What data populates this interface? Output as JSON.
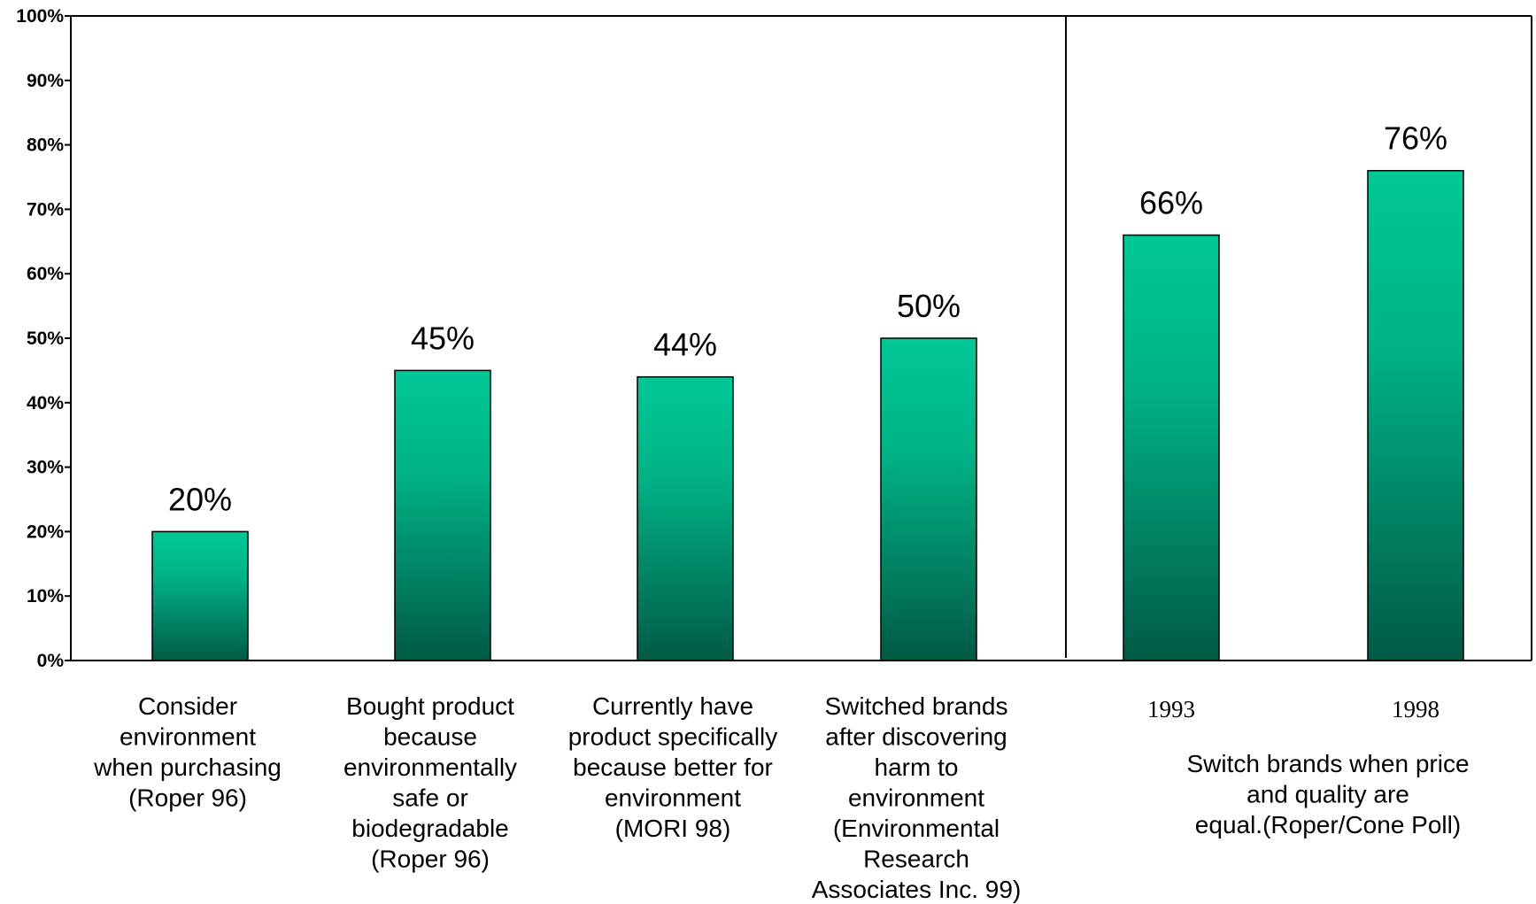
{
  "chart_data": {
    "type": "bar",
    "title": "",
    "xlabel": "",
    "ylabel": "",
    "ylim": [
      0,
      100
    ],
    "y_ticks": [
      "0%",
      "10%",
      "20%",
      "30%",
      "40%",
      "50%",
      "60%",
      "70%",
      "80%",
      "90%",
      "100%"
    ],
    "grid": false,
    "legend": "none",
    "colors": {
      "bar_top": "#00C896",
      "bar_bottom": "#005A46",
      "axis": "#000000"
    },
    "bars": [
      {
        "value": 20,
        "label": "20%",
        "category": [
          "Consider",
          "environment",
          "when purchasing",
          "(Roper 96)"
        ]
      },
      {
        "value": 45,
        "label": "45%",
        "category": [
          "Bought product",
          "because",
          "environmentally",
          "safe or",
          "biodegradable",
          "(Roper 96)"
        ]
      },
      {
        "value": 44,
        "label": "44%",
        "category": [
          "Currently have",
          "product specifically",
          "because better for",
          "environment",
          "(MORI 98)"
        ]
      },
      {
        "value": 50,
        "label": "50%",
        "category": [
          "Switched brands",
          "after discovering",
          "harm to",
          "environment",
          "(Environmental",
          "Research",
          "Associates Inc. 99)"
        ]
      },
      {
        "value": 66,
        "label": "66%",
        "category": [
          "1993"
        ]
      },
      {
        "value": 76,
        "label": "76%",
        "category": [
          "1998"
        ]
      }
    ],
    "group_label": [
      "Switch brands when price",
      "and quality are",
      "equal.(Roper/Cone Poll)"
    ]
  }
}
